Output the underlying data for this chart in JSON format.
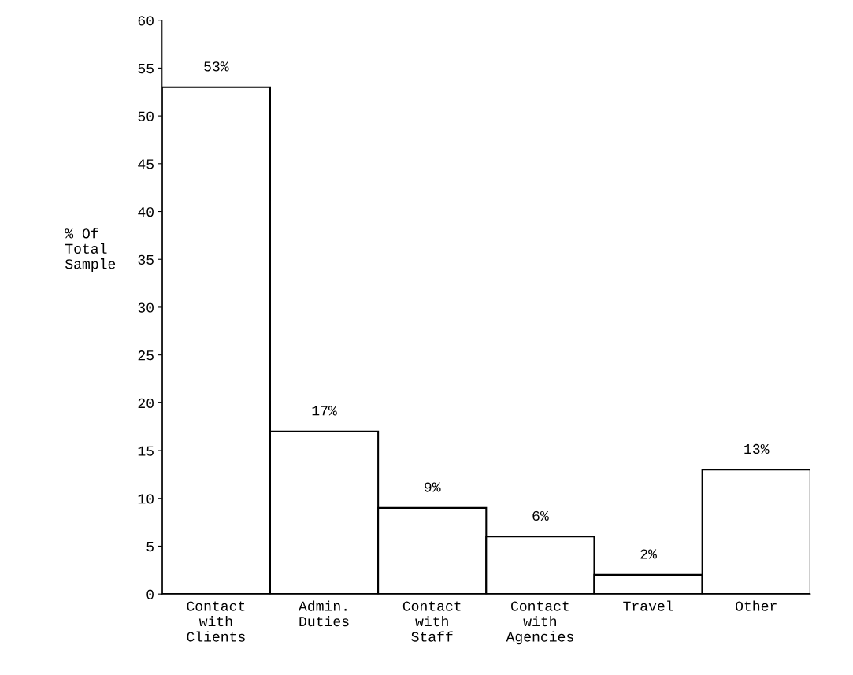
{
  "chart_data": {
    "type": "bar",
    "ylabel": "% Of\nTotal\nSample",
    "categories": [
      "Contact\nwith\nClients",
      "Admin.\nDuties",
      "Contact\nwith\nStaff",
      "Contact\nwith\nAgencies",
      "Travel",
      "Other"
    ],
    "values": [
      53,
      17,
      9,
      6,
      2,
      13
    ],
    "value_labels": [
      "53%",
      "17%",
      "9%",
      "6%",
      "2%",
      "13%"
    ],
    "color": "#ffffff",
    "ylim": [
      0,
      60
    ],
    "yticks": [
      0,
      5,
      10,
      15,
      20,
      25,
      30,
      35,
      40,
      45,
      50,
      55,
      60
    ],
    "grid": false,
    "legend": false
  }
}
